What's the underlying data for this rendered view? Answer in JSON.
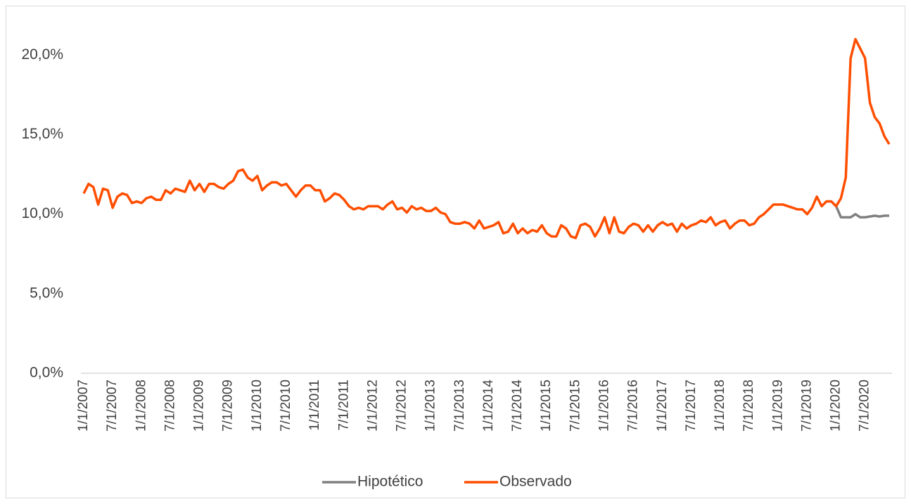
{
  "chart_data": {
    "type": "line",
    "categories": [
      "1/1/2007",
      null,
      null,
      null,
      null,
      null,
      "7/1/2007",
      null,
      null,
      null,
      null,
      null,
      "1/1/2008",
      null,
      null,
      null,
      null,
      null,
      "7/1/2008",
      null,
      null,
      null,
      null,
      null,
      "1/1/2009",
      null,
      null,
      null,
      null,
      null,
      "7/1/2009",
      null,
      null,
      null,
      null,
      null,
      "1/1/2010",
      null,
      null,
      null,
      null,
      null,
      "7/1/2010",
      null,
      null,
      null,
      null,
      null,
      "1/1/2011",
      null,
      null,
      null,
      null,
      null,
      "7/1/2011",
      null,
      null,
      null,
      null,
      null,
      "1/1/2012",
      null,
      null,
      null,
      null,
      null,
      "7/1/2012",
      null,
      null,
      null,
      null,
      null,
      "1/1/2013",
      null,
      null,
      null,
      null,
      null,
      "7/1/2013",
      null,
      null,
      null,
      null,
      null,
      "1/1/2014",
      null,
      null,
      null,
      null,
      null,
      "7/1/2014",
      null,
      null,
      null,
      null,
      null,
      "1/1/2015",
      null,
      null,
      null,
      null,
      null,
      "7/1/2015",
      null,
      null,
      null,
      null,
      null,
      "1/1/2016",
      null,
      null,
      null,
      null,
      null,
      "7/1/2016",
      null,
      null,
      null,
      null,
      null,
      "1/1/2017",
      null,
      null,
      null,
      null,
      null,
      "7/1/2017",
      null,
      null,
      null,
      null,
      null,
      "1/1/2018",
      null,
      null,
      null,
      null,
      null,
      "7/1/2018",
      null,
      null,
      null,
      null,
      null,
      "1/1/2019",
      null,
      null,
      null,
      null,
      null,
      "7/1/2019",
      null,
      null,
      null,
      null,
      null,
      "1/1/2020",
      null,
      null,
      null,
      null,
      null,
      "7/1/2020",
      null,
      null,
      null,
      null,
      null
    ],
    "series": [
      {
        "name": "Hipotético",
        "color": "#808080",
        "values": [
          null,
          null,
          null,
          null,
          null,
          null,
          null,
          null,
          null,
          null,
          null,
          null,
          null,
          null,
          null,
          null,
          null,
          null,
          null,
          null,
          null,
          null,
          null,
          null,
          null,
          null,
          null,
          null,
          null,
          null,
          null,
          null,
          null,
          null,
          null,
          null,
          null,
          null,
          null,
          null,
          null,
          null,
          null,
          null,
          null,
          null,
          null,
          null,
          null,
          null,
          null,
          null,
          null,
          null,
          null,
          null,
          null,
          null,
          null,
          null,
          null,
          null,
          null,
          null,
          null,
          null,
          null,
          null,
          null,
          null,
          null,
          null,
          null,
          null,
          null,
          null,
          null,
          null,
          null,
          null,
          null,
          null,
          null,
          null,
          null,
          null,
          null,
          null,
          null,
          null,
          null,
          null,
          null,
          null,
          null,
          null,
          null,
          null,
          null,
          null,
          null,
          null,
          null,
          null,
          null,
          null,
          null,
          null,
          null,
          null,
          null,
          null,
          null,
          null,
          null,
          null,
          null,
          null,
          null,
          null,
          null,
          null,
          null,
          null,
          null,
          null,
          null,
          null,
          null,
          null,
          null,
          null,
          null,
          null,
          null,
          null,
          null,
          null,
          null,
          null,
          null,
          null,
          null,
          null,
          null,
          null,
          null,
          null,
          null,
          null,
          null,
          null,
          null,
          null,
          null,
          10.8,
          10.5,
          9.8,
          9.8,
          9.8,
          10.0,
          9.8,
          9.8,
          9.85,
          9.9,
          9.85,
          9.9,
          9.9
        ]
      },
      {
        "name": "Observado",
        "color": "#ff4e00",
        "values": [
          11.3,
          11.9,
          11.7,
          10.6,
          11.6,
          11.5,
          10.4,
          11.1,
          11.3,
          11.2,
          10.7,
          10.8,
          10.7,
          11.0,
          11.1,
          10.9,
          10.9,
          11.5,
          11.3,
          11.6,
          11.5,
          11.4,
          12.1,
          11.5,
          11.9,
          11.4,
          11.9,
          11.9,
          11.7,
          11.6,
          11.9,
          12.1,
          12.7,
          12.8,
          12.3,
          12.1,
          12.4,
          11.5,
          11.8,
          12.0,
          12.0,
          11.8,
          11.9,
          11.5,
          11.1,
          11.5,
          11.8,
          11.8,
          11.5,
          11.5,
          10.8,
          11.0,
          11.3,
          11.2,
          10.9,
          10.5,
          10.3,
          10.4,
          10.3,
          10.5,
          10.5,
          10.5,
          10.3,
          10.6,
          10.8,
          10.3,
          10.4,
          10.1,
          10.5,
          10.3,
          10.4,
          10.2,
          10.2,
          10.4,
          10.1,
          10.0,
          9.5,
          9.4,
          9.4,
          9.5,
          9.4,
          9.1,
          9.6,
          9.1,
          9.2,
          9.3,
          9.5,
          8.8,
          8.9,
          9.4,
          8.8,
          9.1,
          8.8,
          9.0,
          8.9,
          9.3,
          8.8,
          8.6,
          8.6,
          9.3,
          9.1,
          8.6,
          8.5,
          9.3,
          9.4,
          9.2,
          8.6,
          9.1,
          9.8,
          8.8,
          9.8,
          8.9,
          8.8,
          9.2,
          9.4,
          9.3,
          8.9,
          9.3,
          8.9,
          9.3,
          9.5,
          9.3,
          9.4,
          8.9,
          9.4,
          9.1,
          9.3,
          9.4,
          9.6,
          9.5,
          9.8,
          9.3,
          9.5,
          9.6,
          9.1,
          9.4,
          9.6,
          9.6,
          9.3,
          9.4,
          9.8,
          10.0,
          10.3,
          10.6,
          10.6,
          10.6,
          10.5,
          10.4,
          10.3,
          10.3,
          10.0,
          10.4,
          11.1,
          10.5,
          10.8,
          10.8,
          10.5,
          11.0,
          12.3,
          19.8,
          21.0,
          20.4,
          19.8,
          17.0,
          16.1,
          15.7,
          14.9,
          14.4
        ]
      }
    ],
    "ylim": [
      0,
      22
    ],
    "yticks": [
      {
        "value": 0,
        "label": "0,0%"
      },
      {
        "value": 5,
        "label": "5,0%"
      },
      {
        "value": 10,
        "label": "10,0%"
      },
      {
        "value": 15,
        "label": "15,0%"
      },
      {
        "value": 20,
        "label": "20,0%"
      }
    ],
    "grid": false,
    "legend": "bottom"
  }
}
